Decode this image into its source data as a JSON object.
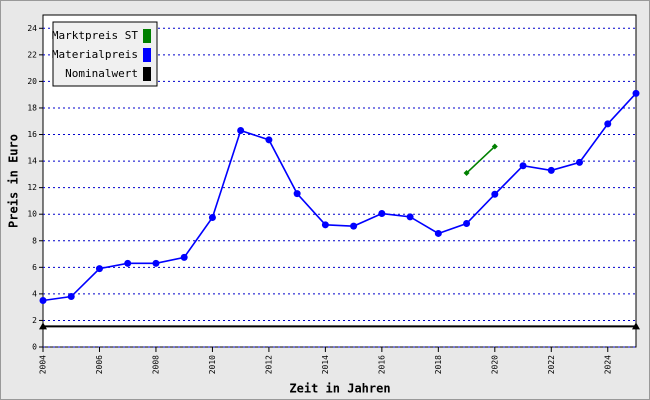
{
  "chart_data": {
    "type": "line",
    "xlabel": "Zeit in Jahren",
    "ylabel": "Preis in Euro",
    "xlim": [
      2004,
      2025
    ],
    "xticks": [
      2004,
      2006,
      2008,
      2010,
      2012,
      2014,
      2016,
      2018,
      2020,
      2022,
      2024
    ],
    "ylim": [
      0,
      25
    ],
    "yticks": [
      0,
      2,
      4,
      6,
      8,
      10,
      12,
      14,
      16,
      18,
      20,
      22,
      24
    ],
    "grid": true,
    "legend": "upper left",
    "series": [
      {
        "name": "Marktpreis ST",
        "color": "#008000",
        "marker": "diamond",
        "x": [
          2019,
          2020
        ],
        "values": [
          13.1,
          15.1
        ]
      },
      {
        "name": "Materialpreis",
        "color": "#0000ff",
        "marker": "circle",
        "x": [
          2004,
          2005,
          2006,
          2007,
          2008,
          2009,
          2010,
          2011,
          2012,
          2013,
          2014,
          2015,
          2016,
          2017,
          2018,
          2019,
          2020,
          2021,
          2022,
          2023,
          2024,
          2025
        ],
        "values": [
          3.5,
          3.8,
          5.9,
          6.3,
          6.3,
          6.75,
          9.75,
          16.3,
          15.6,
          11.55,
          9.2,
          9.1,
          10.05,
          9.8,
          8.55,
          9.3,
          11.5,
          13.65,
          13.3,
          13.9,
          16.8,
          19.1
        ]
      },
      {
        "name": "Nominalwert",
        "color": "#000000",
        "marker": "triangle",
        "x": [
          2004,
          2025
        ],
        "values": [
          1.55,
          1.55
        ]
      }
    ]
  }
}
